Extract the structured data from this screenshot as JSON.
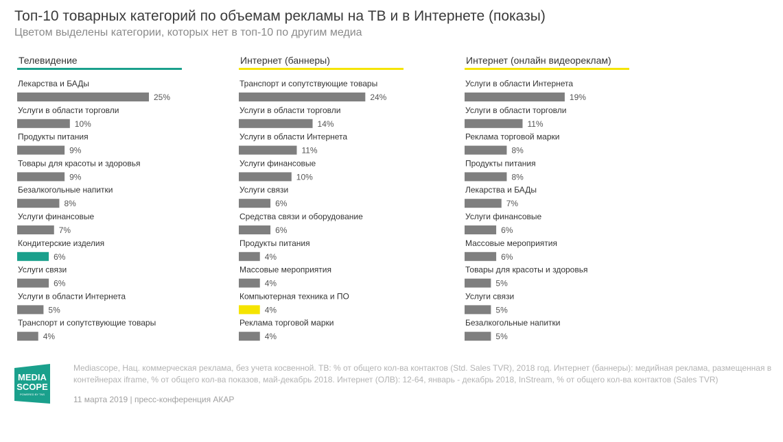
{
  "header": {
    "title": "Топ-10 товарных категорий по объемам рекламы на ТВ и в Интернете (показы)",
    "subtitle": "Цветом выделены категории, которых нет в топ-10 по другим медиа"
  },
  "colors": {
    "bar_default": "#7f7f7f",
    "highlight_tv": "#1aa08c",
    "highlight_banners": "#f5e400",
    "underline_tv": "#1aa08c",
    "underline_yellow": "#f5e400"
  },
  "chart_data": [
    {
      "type": "bar",
      "orientation": "horizontal",
      "title": "Телевидение",
      "xlim": [
        0,
        25
      ],
      "value_suffix": "%",
      "categories": [
        "Лекарства и БАДы",
        "Услуги в области торговли",
        "Продукты питания",
        "Товары для красоты и здоровья",
        "Безалкогольные напитки",
        "Услуги финансовые",
        "Кондитерские изделия",
        "Услуги связи",
        "Услуги в области Интернета",
        "Транспорт и сопутствующие товары"
      ],
      "values": [
        25,
        10,
        9,
        9,
        8,
        7,
        6,
        6,
        5,
        4
      ],
      "highlighted": [
        false,
        false,
        false,
        false,
        false,
        false,
        true,
        false,
        false,
        false
      ]
    },
    {
      "type": "bar",
      "orientation": "horizontal",
      "title": "Интернет (баннеры)",
      "xlim": [
        0,
        25
      ],
      "value_suffix": "%",
      "categories": [
        "Транспорт и сопутствующие товары",
        "Услуги в области торговли",
        "Услуги в области Интернета",
        "Услуги финансовые",
        "Услуги связи",
        "Средства связи и оборудование",
        "Продукты питания",
        "Массовые мероприятия",
        "Компьютерная техника и ПО",
        "Реклама торговой марки"
      ],
      "values": [
        24,
        14,
        11,
        10,
        6,
        6,
        4,
        4,
        4,
        4
      ],
      "highlighted": [
        false,
        false,
        false,
        false,
        false,
        false,
        false,
        false,
        true,
        false
      ]
    },
    {
      "type": "bar",
      "orientation": "horizontal",
      "title": "Интернет (онлайн видеореклам)",
      "xlim": [
        0,
        25
      ],
      "value_suffix": "%",
      "categories": [
        "Услуги в области Интернета",
        "Услуги в области торговли",
        "Реклама торговой марки",
        "Продукты питания",
        "Лекарства и БАДы",
        "Услуги финансовые",
        "Массовые мероприятия",
        "Товары для красоты и здоровья",
        "Услуги связи",
        "Безалкогольные напитки"
      ],
      "values": [
        19,
        11,
        8,
        8,
        7,
        6,
        6,
        5,
        5,
        5
      ],
      "highlighted": [
        false,
        false,
        false,
        false,
        false,
        false,
        false,
        false,
        false,
        false
      ]
    }
  ],
  "footer": {
    "source": "Mediascope, Нац. коммерческая реклама, без учета косвенной. ТВ: % от общего кол-ва контактов (Std. Sales TVR), 2018 год. Интернет (баннеры): медийная реклама, размещенная в контейнерах iframe, % от общего кол-ва показов, май-декабрь 2018. Интернет (ОЛВ): 12-64, январь - декабрь 2018, InStream, % от общего кол-ва контактов (Sales TVR)",
    "date": "11 марта 2019 | пресс-конференция АКАР"
  },
  "logo": {
    "line1": "MEDIA",
    "line2": "SCOPE",
    "tagline": "POWERED BY TNS",
    "color": "#1aa08c"
  }
}
